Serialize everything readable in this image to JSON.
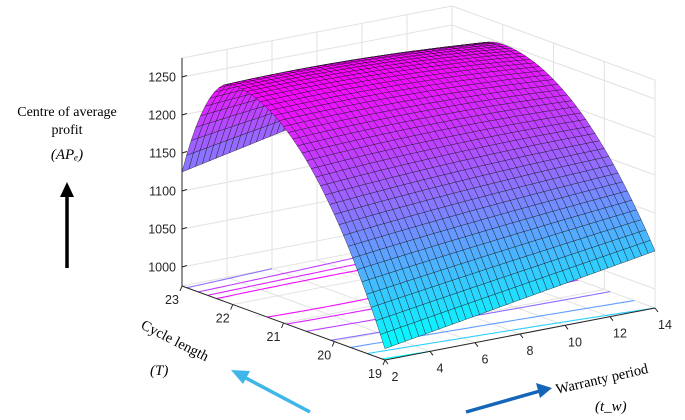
{
  "chart_data": {
    "type": "surface",
    "zlabel_lines": [
      "Centre of average",
      "profit"
    ],
    "zlabel_symbol": "(APₑ)",
    "xlabel": "Warranty period",
    "xlabel_symbol": "(t_w)",
    "ylabel": "Cycle length",
    "ylabel_symbol": "(T)",
    "x_ticks": [
      "2",
      "4",
      "6",
      "8",
      "10",
      "12",
      "14"
    ],
    "y_ticks": [
      "19",
      "20",
      "21",
      "22",
      "23"
    ],
    "z_ticks": [
      "1000",
      "1050",
      "1100",
      "1150",
      "1200",
      "1250"
    ],
    "xlim": [
      2,
      14
    ],
    "ylim": [
      19,
      23
    ],
    "zlim": [
      975,
      1275
    ],
    "grid": true,
    "contour_projection": true,
    "colormap": [
      "#00ffff",
      "#ff00ff"
    ],
    "surface": {
      "peak_y": 22,
      "z_at_corner_x2_y19": 990,
      "z_at_corner_x14_y19": 1050,
      "z_at_corner_x2_y23": 1125,
      "z_at_corner_x14_y23": 1200,
      "z_peak": 1265
    }
  }
}
